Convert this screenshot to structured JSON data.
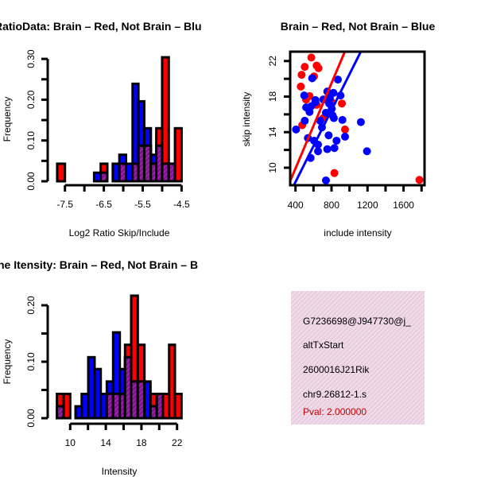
{
  "colors": {
    "red": "#ff0000",
    "blue": "#0000ff",
    "overlap": "#9a1aa8",
    "panel": "#f6d7f1",
    "pval": "#c00000"
  },
  "chart_data": [
    {
      "type": "bar",
      "subtype": "overlaid-histogram",
      "title": "RatioData: Brain – Red, Not Brain – Blu",
      "xlabel": "Log2 Ratio Skip/Include",
      "ylabel": "Frequency",
      "xlim": [
        -7.75,
        -4.45
      ],
      "ylim": [
        0,
        0.3
      ],
      "xticks": [
        -7.5,
        -7,
        -6.5,
        -6,
        -5.5,
        -5,
        -4.5
      ],
      "xtick_labels": [
        "-7.5",
        "",
        "-6.5",
        "",
        "-5.5",
        "",
        "-4.5"
      ],
      "yticks": [
        0,
        0.05,
        0.1,
        0.15,
        0.2,
        0.25,
        0.3
      ],
      "ytick_labels": [
        "0.00",
        "",
        "0.10",
        "",
        "0.20",
        "",
        "0.30"
      ],
      "series": [
        {
          "name": "Brain",
          "color": "red"
        },
        {
          "name": "Not Brain",
          "color": "blue"
        }
      ],
      "bins": [
        {
          "x0": -7.7,
          "x1": -7.5,
          "red": 0.043,
          "blue": 0
        },
        {
          "x0": -6.75,
          "x1": -6.58,
          "red": 0,
          "blue": 0.021
        },
        {
          "x0": -6.58,
          "x1": -6.41,
          "red": 0.043,
          "blue": 0.021
        },
        {
          "x0": -6.27,
          "x1": -6.1,
          "red": 0,
          "blue": 0.043
        },
        {
          "x0": -6.1,
          "x1": -5.93,
          "red": 0.043,
          "blue": 0.065
        },
        {
          "x0": -5.93,
          "x1": -5.76,
          "red": 0,
          "blue": 0.043
        },
        {
          "x0": -5.76,
          "x1": -5.61,
          "red": 0.043,
          "blue": 0.239
        },
        {
          "x0": -5.61,
          "x1": -5.46,
          "red": 0.087,
          "blue": 0.196
        },
        {
          "x0": -5.46,
          "x1": -5.29,
          "red": 0.087,
          "blue": 0.13
        },
        {
          "x0": -5.29,
          "x1": -5.15,
          "red": 0.043,
          "blue": 0.065
        },
        {
          "x0": -5.15,
          "x1": -5.0,
          "red": 0.13,
          "blue": 0.087
        },
        {
          "x0": -5.0,
          "x1": -4.83,
          "red": 0.304,
          "blue": 0.043
        },
        {
          "x0": -4.83,
          "x1": -4.67,
          "red": 0.043,
          "blue": 0.043
        },
        {
          "x0": -4.67,
          "x1": -4.5,
          "red": 0.13,
          "blue": 0
        }
      ]
    },
    {
      "type": "scatter",
      "title": "Brain – Red, Not Brain – Blue",
      "xlabel": "include intensity",
      "ylabel": "skip intensity",
      "xlim": [
        341,
        1833
      ],
      "ylim": [
        8.03,
        23.05
      ],
      "xticks": [
        400,
        600,
        800,
        1000,
        1200,
        1400,
        1600,
        1800
      ],
      "xtick_labels": [
        "400",
        "",
        "800",
        "",
        "1200",
        "",
        "1600",
        ""
      ],
      "yticks": [
        10,
        12,
        14,
        16,
        18,
        20,
        22
      ],
      "ytick_labels": [
        "10",
        "",
        "14",
        "",
        "18",
        "",
        "22"
      ],
      "series": [
        {
          "name": "Brain",
          "color": "red",
          "fit": {
            "slope": 0.02397,
            "intercept": 0.33
          },
          "points": [
            [
              576,
              22.39
            ],
            [
              503,
              21.34
            ],
            [
              468,
              20.45
            ],
            [
              459,
              19.13
            ],
            [
              635,
              21.49
            ],
            [
              656,
              21.19
            ],
            [
              606,
              20.27
            ],
            [
              556,
              18.06
            ],
            [
              518,
              17.67
            ],
            [
              635,
              17.07
            ],
            [
              915,
              17.22
            ],
            [
              950,
              14.3
            ],
            [
              474,
              14.78
            ],
            [
              832,
              9.4
            ],
            [
              1776,
              8.63
            ],
            [
              803,
              17.37
            ],
            [
              709,
              15.58
            ]
          ]
        },
        {
          "name": "Not Brain",
          "color": "blue",
          "fit": {
            "slope": 0.02021,
            "intercept": 0.31
          },
          "points": [
            [
              406,
              14.3
            ],
            [
              585,
              20.06
            ],
            [
              871,
              19.91
            ],
            [
              497,
              18.12
            ],
            [
              518,
              16.78
            ],
            [
              621,
              17.61
            ],
            [
              556,
              16.27
            ],
            [
              503,
              15.28
            ],
            [
              538,
              13.34
            ],
            [
              753,
              18.57
            ],
            [
              821,
              18.42
            ],
            [
              900,
              18.12
            ],
            [
              774,
              17.22
            ],
            [
              803,
              16.63
            ],
            [
              738,
              16.18
            ],
            [
              826,
              15.58
            ],
            [
              921,
              15.37
            ],
            [
              694,
              14.54
            ],
            [
              768,
              13.64
            ],
            [
              606,
              13.04
            ],
            [
              650,
              12.6
            ],
            [
              650,
              11.85
            ],
            [
              753,
              12.09
            ],
            [
              832,
              12.21
            ],
            [
              856,
              13.04
            ],
            [
              568,
              11.1
            ],
            [
              738,
              8.57
            ],
            [
              1126,
              15.13
            ],
            [
              1194,
              11.85
            ],
            [
              950,
              13.49
            ],
            [
              709,
              17.67
            ],
            [
              782,
              17.82
            ],
            [
              576,
              16.93
            ],
            [
              674,
              15.28
            ],
            [
              812,
              15.88
            ],
            [
              621,
              17.37
            ]
          ]
        }
      ]
    },
    {
      "type": "bar",
      "subtype": "overlaid-histogram",
      "title": "ne Itensity: Brain – Red, Not Brain – B",
      "xlabel": "Intensity",
      "ylabel": "Frequency",
      "xlim": [
        8.4,
        22.6
      ],
      "ylim": [
        0,
        0.2
      ],
      "xticks": [
        10,
        12,
        14,
        16,
        18,
        20,
        22
      ],
      "xtick_labels": [
        "10",
        "",
        "14",
        "",
        "18",
        "",
        "22"
      ],
      "yticks": [
        0,
        0.05,
        0.1,
        0.15,
        0.2
      ],
      "ytick_labels": [
        "0.00",
        "",
        "0.10",
        "",
        "0.20"
      ],
      "series": [
        {
          "name": "Brain",
          "color": "red"
        },
        {
          "name": "Not Brain",
          "color": "blue"
        }
      ],
      "bins": [
        {
          "x0": 8.51,
          "x1": 9.26,
          "red": 0.043,
          "blue": 0.021
        },
        {
          "x0": 9.26,
          "x1": 10.0,
          "red": 0.043,
          "blue": 0
        },
        {
          "x0": 10.6,
          "x1": 11.29,
          "red": 0,
          "blue": 0.021
        },
        {
          "x0": 11.29,
          "x1": 12.03,
          "red": 0,
          "blue": 0.043
        },
        {
          "x0": 12.03,
          "x1": 12.74,
          "red": 0,
          "blue": 0.108
        },
        {
          "x0": 12.74,
          "x1": 13.43,
          "red": 0,
          "blue": 0.087
        },
        {
          "x0": 13.43,
          "x1": 14.11,
          "red": 0,
          "blue": 0.043
        },
        {
          "x0": 14.11,
          "x1": 14.82,
          "red": 0.043,
          "blue": 0.065
        },
        {
          "x0": 14.82,
          "x1": 15.57,
          "red": 0.043,
          "blue": 0.152
        },
        {
          "x0": 15.57,
          "x1": 16.16,
          "red": 0.043,
          "blue": 0.087
        },
        {
          "x0": 16.16,
          "x1": 16.85,
          "red": 0.13,
          "blue": 0.108
        },
        {
          "x0": 16.85,
          "x1": 17.59,
          "red": 0.217,
          "blue": 0.065
        },
        {
          "x0": 17.59,
          "x1": 18.34,
          "red": 0.13,
          "blue": 0.065
        },
        {
          "x0": 18.34,
          "x1": 19.02,
          "red": 0,
          "blue": 0.065
        },
        {
          "x0": 19.02,
          "x1": 19.73,
          "red": 0.043,
          "blue": 0.021
        },
        {
          "x0": 19.73,
          "x1": 20.42,
          "red": 0.043,
          "blue": 0.043
        },
        {
          "x0": 20.42,
          "x1": 21.11,
          "red": 0.043,
          "blue": 0
        },
        {
          "x0": 21.11,
          "x1": 21.76,
          "red": 0.13,
          "blue": 0
        },
        {
          "x0": 21.76,
          "x1": 22.5,
          "red": 0.043,
          "blue": 0
        }
      ]
    }
  ],
  "info_panel": {
    "lines": [
      "G7236698@J947730@j_",
      "altTxStart",
      "2600016J21Rik",
      "chr9.26812-1.s"
    ],
    "pval": "Pval: 2.000000"
  }
}
